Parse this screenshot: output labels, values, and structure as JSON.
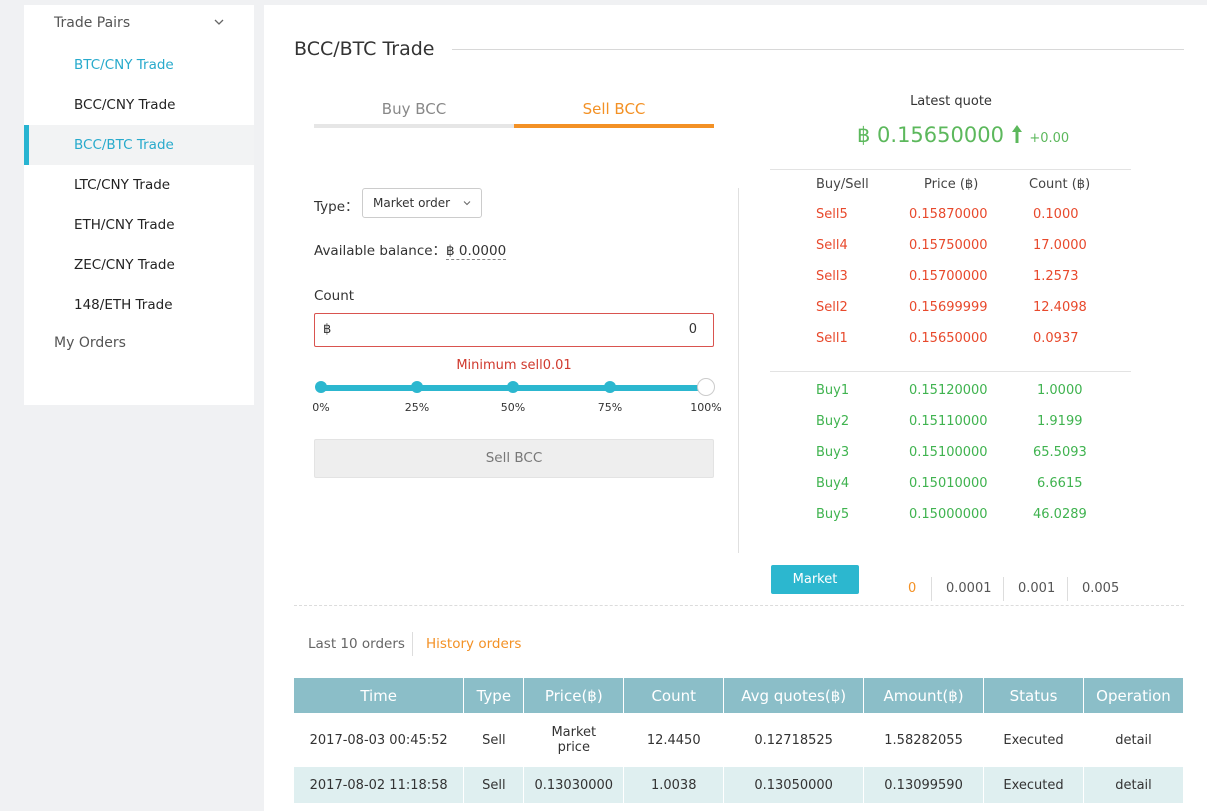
{
  "sidebar": {
    "heading": "Trade Pairs",
    "items": [
      {
        "label": "BTC/CNY Trade"
      },
      {
        "label": "BCC/CNY Trade"
      },
      {
        "label": "BCC/BTC Trade"
      },
      {
        "label": "LTC/CNY Trade"
      },
      {
        "label": "ETH/CNY Trade"
      },
      {
        "label": "ZEC/CNY Trade"
      },
      {
        "label": "148/ETH Trade"
      }
    ],
    "my_orders": "My Orders"
  },
  "page": {
    "title": "BCC/BTC Trade"
  },
  "tabs": {
    "buy": "Buy BCC",
    "sell": "Sell BCC",
    "active": "sell"
  },
  "form": {
    "type_label": "Type：",
    "type_value": "Market order",
    "balance_label": "Available balance：",
    "balance_value": "฿ 0.0000",
    "count_label": "Count",
    "count_prefix": "฿",
    "count_value": "0",
    "min_sell": "Minimum sell0.01",
    "slider_labels": [
      "0%",
      "25%",
      "50%",
      "75%",
      "100%"
    ],
    "slider_value_percent": 100,
    "submit_label": "Sell BCC"
  },
  "quote": {
    "label": "Latest quote",
    "price": "฿ 0.15650000",
    "change": "+0.00"
  },
  "order_book": {
    "headers": {
      "side": "Buy/Sell",
      "price": "Price (฿)",
      "count": "Count (฿)"
    },
    "sells": [
      {
        "side": "Sell5",
        "price": "0.15870000",
        "count": "0.1000"
      },
      {
        "side": "Sell4",
        "price": "0.15750000",
        "count": "17.0000"
      },
      {
        "side": "Sell3",
        "price": "0.15700000",
        "count": "1.2573"
      },
      {
        "side": "Sell2",
        "price": "0.15699999",
        "count": "12.4098"
      },
      {
        "side": "Sell1",
        "price": "0.15650000",
        "count": "0.0937"
      }
    ],
    "buys": [
      {
        "side": "Buy1",
        "price": "0.15120000",
        "count": "1.0000"
      },
      {
        "side": "Buy2",
        "price": "0.15110000",
        "count": "1.9199"
      },
      {
        "side": "Buy3",
        "price": "0.15100000",
        "count": "65.5093"
      },
      {
        "side": "Buy4",
        "price": "0.15010000",
        "count": "6.6615"
      },
      {
        "side": "Buy5",
        "price": "0.15000000",
        "count": "46.0289"
      }
    ],
    "market_button": "Market",
    "precisions": [
      "0",
      "0.0001",
      "0.001",
      "0.005"
    ]
  },
  "orders": {
    "tabs": {
      "last": "Last 10 orders",
      "history": "History orders"
    },
    "columns": [
      "Time",
      "Type",
      "Price(฿)",
      "Count",
      "Avg quotes(฿)",
      "Amount(฿)",
      "Status",
      "Operation"
    ],
    "rows": [
      {
        "time": "2017-08-03 00:45:52",
        "type": "Sell",
        "price_line1": "Market",
        "price_line2": "price",
        "count": "12.4450",
        "avg": "0.12718525",
        "amount": "1.58282055",
        "status": "Executed",
        "operation": "detail"
      },
      {
        "time": "2017-08-02 11:18:58",
        "type": "Sell",
        "price": "0.13030000",
        "count": "1.0038",
        "avg": "0.13050000",
        "amount": "0.13099590",
        "status": "Executed",
        "operation": "detail"
      }
    ]
  },
  "colors": {
    "accent_teal": "#2cb7cf",
    "accent_orange": "#f39125",
    "sell_red": "#e8492c",
    "buy_green": "#3fb34f"
  },
  "icons": {
    "sidebar_toggle": "chevron-down-icon",
    "select_caret": "chevron-down-icon",
    "quote_trend": "arrow-up-icon"
  }
}
